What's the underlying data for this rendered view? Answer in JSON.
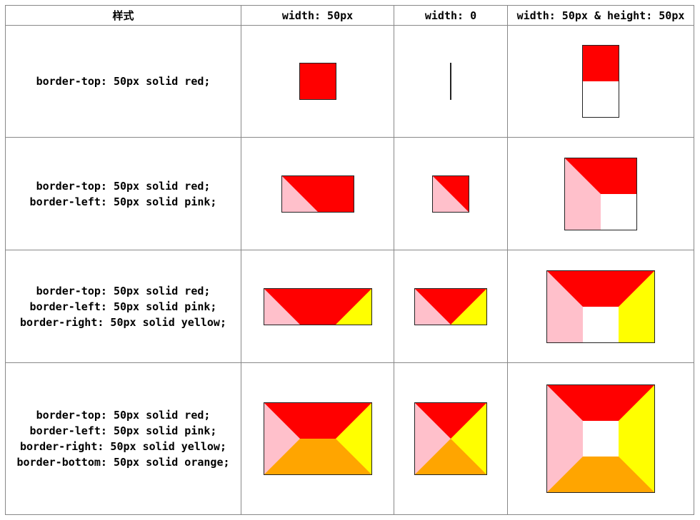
{
  "table": {
    "header": [
      "样式",
      "width: 50px",
      "width: 0",
      "width: 50px & height: 50px"
    ],
    "rows": [
      {
        "style": [
          "border-top: 50px solid red;"
        ]
      },
      {
        "style": [
          "border-top: 50px solid red;",
          "border-left: 50px solid pink;"
        ]
      },
      {
        "style": [
          "border-top: 50px solid red;",
          "border-left: 50px solid pink;",
          "border-right: 50px solid yellow;"
        ]
      },
      {
        "style": [
          "border-top: 50px solid red;",
          "border-left: 50px solid pink;",
          "border-right: 50px solid yellow;",
          "border-bottom: 50px solid orange;"
        ]
      }
    ]
  }
}
